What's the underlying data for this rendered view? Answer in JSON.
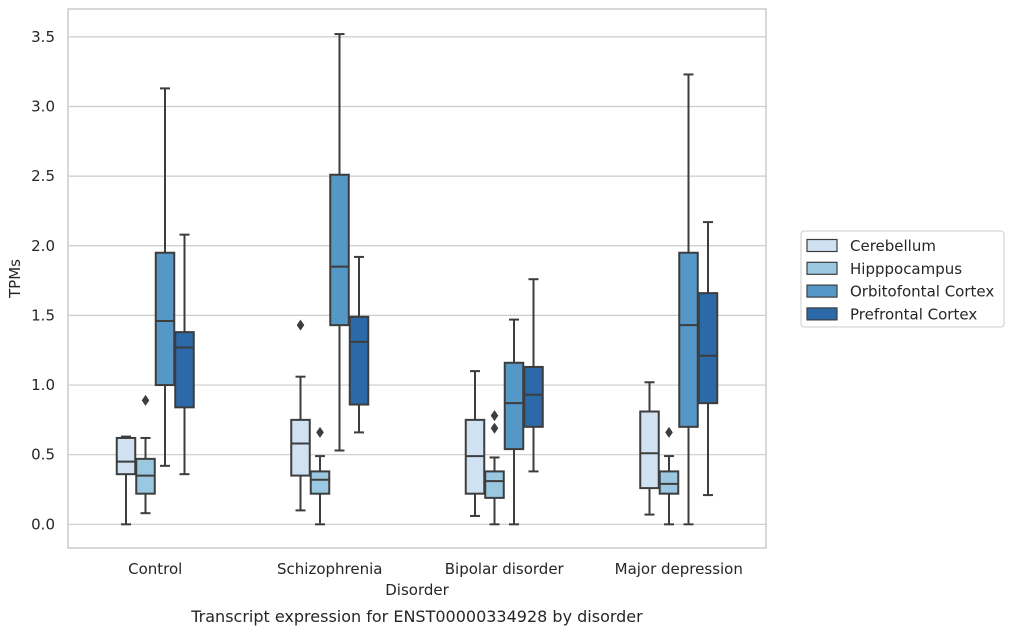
{
  "chart_data": {
    "type": "box",
    "caption": "Transcript expression for ENST00000334928 by disorder",
    "xlabel": "Disorder",
    "ylabel": "TPMs",
    "ylim": [
      -0.17,
      3.7
    ],
    "yticks": [
      "0.0",
      "0.5",
      "1.0",
      "1.5",
      "2.0",
      "2.5",
      "3.0",
      "3.5"
    ],
    "grid": true,
    "legend_position": "right",
    "categories": [
      "Control",
      "Schizophrenia",
      "Bipolar disorder",
      "Major depression"
    ],
    "series": [
      {
        "name": "Cerebellum",
        "color": "#d0e1f2",
        "boxes": [
          {
            "whislo": 0.0,
            "q1": 0.36,
            "med": 0.45,
            "q3": 0.62,
            "whishi": 0.63,
            "fliers": []
          },
          {
            "whislo": 0.1,
            "q1": 0.35,
            "med": 0.58,
            "q3": 0.75,
            "whishi": 1.06,
            "fliers": [
              1.43
            ]
          },
          {
            "whislo": 0.06,
            "q1": 0.22,
            "med": 0.49,
            "q3": 0.75,
            "whishi": 1.1,
            "fliers": []
          },
          {
            "whislo": 0.07,
            "q1": 0.26,
            "med": 0.51,
            "q3": 0.81,
            "whishi": 1.02,
            "fliers": []
          }
        ]
      },
      {
        "name": "Hipppocampus",
        "color": "#9ac8e0",
        "boxes": [
          {
            "whislo": 0.08,
            "q1": 0.22,
            "med": 0.35,
            "q3": 0.47,
            "whishi": 0.62,
            "fliers": [
              0.89
            ]
          },
          {
            "whislo": 0.0,
            "q1": 0.22,
            "med": 0.32,
            "q3": 0.38,
            "whishi": 0.49,
            "fliers": [
              0.66
            ]
          },
          {
            "whislo": 0.0,
            "q1": 0.19,
            "med": 0.31,
            "q3": 0.38,
            "whishi": 0.48,
            "fliers": [
              0.69,
              0.78
            ]
          },
          {
            "whislo": 0.0,
            "q1": 0.22,
            "med": 0.29,
            "q3": 0.38,
            "whishi": 0.49,
            "fliers": [
              0.66
            ]
          }
        ]
      },
      {
        "name": "Orbitofontal Cortex",
        "color": "#5597c6",
        "boxes": [
          {
            "whislo": 0.42,
            "q1": 1.0,
            "med": 1.46,
            "q3": 1.95,
            "whishi": 3.13,
            "fliers": []
          },
          {
            "whislo": 0.53,
            "q1": 1.43,
            "med": 1.85,
            "q3": 2.51,
            "whishi": 3.52,
            "fliers": []
          },
          {
            "whislo": 0.0,
            "q1": 0.54,
            "med": 0.87,
            "q3": 1.16,
            "whishi": 1.47,
            "fliers": []
          },
          {
            "whislo": 0.0,
            "q1": 0.7,
            "med": 1.43,
            "q3": 1.95,
            "whishi": 3.23,
            "fliers": []
          }
        ]
      },
      {
        "name": "Prefrontal Cortex",
        "color": "#2c69a9",
        "boxes": [
          {
            "whislo": 0.36,
            "q1": 0.84,
            "med": 1.27,
            "q3": 1.38,
            "whishi": 2.08,
            "fliers": []
          },
          {
            "whislo": 0.66,
            "q1": 0.86,
            "med": 1.31,
            "q3": 1.49,
            "whishi": 1.92,
            "fliers": []
          },
          {
            "whislo": 0.38,
            "q1": 0.7,
            "med": 0.93,
            "q3": 1.13,
            "whishi": 1.76,
            "fliers": []
          },
          {
            "whislo": 0.21,
            "q1": 0.87,
            "med": 1.21,
            "q3": 1.66,
            "whishi": 2.17,
            "fliers": []
          }
        ]
      }
    ]
  }
}
